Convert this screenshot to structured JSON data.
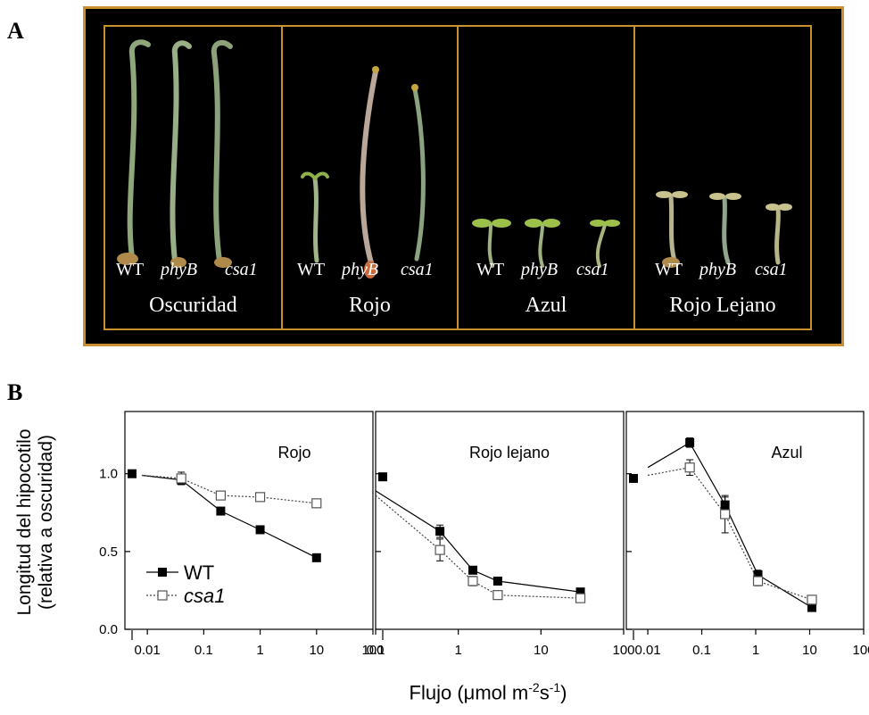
{
  "panel_a": {
    "letter": "A",
    "conditions": [
      {
        "label": "Oscuridad",
        "genotypes": [
          "WT",
          "phyB",
          "csa1"
        ]
      },
      {
        "label": "Rojo",
        "genotypes": [
          "WT",
          "phyB",
          "csa1"
        ]
      },
      {
        "label": "Azul",
        "genotypes": [
          "WT",
          "phyB",
          "csa1"
        ]
      },
      {
        "label": "Rojo Lejano",
        "genotypes": [
          "WT",
          "phyB",
          "csa1"
        ]
      }
    ],
    "colors": {
      "background": "#000000",
      "frame": "#c8902e",
      "seedling": "#8fa57a"
    }
  },
  "panel_b": {
    "letter": "B",
    "ylabel_line1": "Longitud del hipocotilo",
    "ylabel_line2": "(relativa a oscuridad)",
    "xlabel_prefix": "Flujo (",
    "xlabel_mu": "μ",
    "xlabel_unit1": "mol m",
    "xlabel_sup1": "-2",
    "xlabel_unit2": "s",
    "xlabel_sup2": "-1",
    "xlabel_suffix": ")",
    "legend": [
      {
        "name": "WT",
        "italic": false
      },
      {
        "name": "csa1",
        "italic": true
      }
    ],
    "x_tick_labels": [
      "0.01",
      "0.1",
      "1",
      "10",
      "100"
    ],
    "y_tick_labels": [
      "0.0",
      "0.5",
      "1.0"
    ]
  },
  "chart_data": [
    {
      "type": "line",
      "title": "Rojo",
      "xscale": "log",
      "xlim": [
        0.004,
        100
      ],
      "ylim": [
        0,
        1.4
      ],
      "grid": false,
      "legend_position": "bottom-left",
      "dark_point": {
        "series": "WT",
        "y": 1.0
      },
      "x_ticks": [
        0.01,
        0.1,
        1,
        10,
        100
      ],
      "y_ticks": [
        0,
        0.5,
        1.0
      ],
      "series": [
        {
          "name": "WT",
          "marker": "filled-square",
          "line": "solid",
          "x": [
            0.04,
            0.2,
            1,
            10
          ],
          "y": [
            0.96,
            0.76,
            0.64,
            0.46
          ],
          "err": [
            0.03,
            0.02,
            0.02,
            0.02
          ]
        },
        {
          "name": "csa1",
          "marker": "open-square",
          "line": "dotted",
          "x": [
            0.04,
            0.2,
            1,
            10
          ],
          "y": [
            0.97,
            0.86,
            0.85,
            0.81
          ],
          "err": [
            0.04,
            0.02,
            0.02,
            0.02
          ]
        }
      ],
      "dark_lines": {
        "WT": [
          [
            0.008,
            0.99
          ]
        ],
        "csa1": [
          [
            0.008,
            0.99
          ]
        ]
      }
    },
    {
      "type": "line",
      "title": "Rojo lejano",
      "xscale": "log",
      "xlim": [
        0.1,
        100
      ],
      "ylim": [
        0,
        1.4
      ],
      "grid": false,
      "dark_point": {
        "series": "WT",
        "y": 0.98
      },
      "x_ticks": [
        0.1,
        1,
        10,
        100
      ],
      "y_ticks": [
        0,
        0.5,
        1.0
      ],
      "series": [
        {
          "name": "WT",
          "marker": "filled-square",
          "line": "solid",
          "x": [
            0.6,
            1.5,
            3,
            30
          ],
          "y": [
            0.63,
            0.38,
            0.31,
            0.24
          ],
          "err": [
            0.04,
            0.02,
            0.02,
            0.02
          ]
        },
        {
          "name": "csa1",
          "marker": "open-square",
          "line": "dotted",
          "x": [
            0.6,
            1.5,
            3,
            30
          ],
          "y": [
            0.51,
            0.31,
            0.22,
            0.2
          ],
          "err": [
            0.07,
            0.03,
            0.02,
            0.02
          ]
        }
      ],
      "dark_lines": {
        "WT": [
          [
            0.1,
            0.89
          ]
        ],
        "csa1": [
          [
            0.1,
            0.86
          ]
        ]
      }
    },
    {
      "type": "line",
      "title": "Azul",
      "xscale": "log",
      "xlim": [
        0.004,
        100
      ],
      "ylim": [
        0,
        1.4
      ],
      "grid": false,
      "dark_point": {
        "series": "WT",
        "y": 0.97
      },
      "x_ticks": [
        0.01,
        0.1,
        1,
        10,
        100
      ],
      "y_ticks": [
        0,
        0.5,
        1.0
      ],
      "series": [
        {
          "name": "WT",
          "marker": "filled-square",
          "line": "solid",
          "x": [
            0.06,
            0.27,
            1.1,
            11
          ],
          "y": [
            1.2,
            0.8,
            0.35,
            0.14
          ],
          "err": [
            0.03,
            0.05,
            0.03,
            0.02
          ]
        },
        {
          "name": "csa1",
          "marker": "open-square",
          "line": "dotted",
          "x": [
            0.06,
            0.27,
            1.1,
            11
          ],
          "y": [
            1.04,
            0.74,
            0.31,
            0.19
          ],
          "err": [
            0.05,
            0.12,
            0.03,
            0.02
          ]
        }
      ],
      "dark_lines": {
        "WT": [
          [
            0.01,
            1.04
          ]
        ],
        "csa1": [
          [
            0.01,
            0.99
          ]
        ]
      }
    }
  ]
}
